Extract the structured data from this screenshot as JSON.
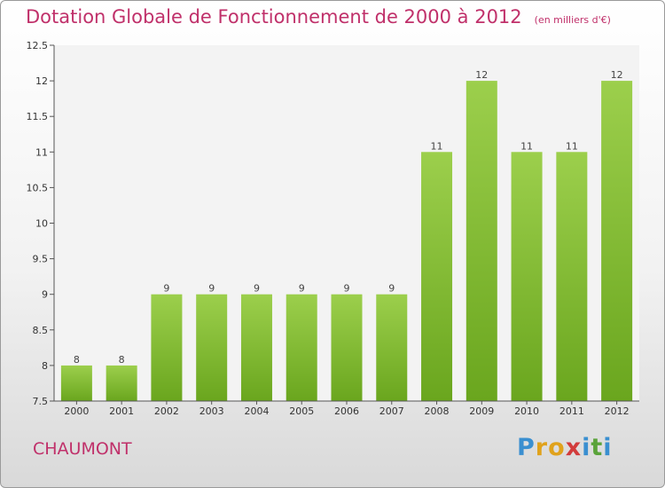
{
  "chart_data": {
    "type": "bar",
    "title": "Dotation Globale de Fonctionnement de 2000 à 2012",
    "subtitle": "(en milliers d'€)",
    "categories": [
      "2000",
      "2001",
      "2002",
      "2003",
      "2004",
      "2005",
      "2006",
      "2007",
      "2008",
      "2009",
      "2010",
      "2011",
      "2012"
    ],
    "values": [
      8,
      8,
      9,
      9,
      9,
      9,
      9,
      9,
      11,
      12,
      11,
      11,
      12
    ],
    "value_labels": [
      "8",
      "8",
      "9",
      "9",
      "9",
      "9",
      "9",
      "9",
      "11",
      "12",
      "11",
      "11",
      "12"
    ],
    "y_ticks": [
      "7.5",
      "8",
      "8.5",
      "9",
      "9.5",
      "10",
      "10.5",
      "11",
      "11.5",
      "12",
      "12.5"
    ],
    "ylim": [
      7.5,
      12.5
    ],
    "xlabel": "",
    "ylabel": "",
    "grid": false,
    "bar_color_top": "#9ccf4c",
    "bar_color_bottom": "#6aa61e"
  },
  "footer": {
    "commune": "CHAUMONT",
    "brand_letters": [
      "P",
      "r",
      "o",
      "x",
      "i",
      "t",
      "i"
    ],
    "brand_colors": [
      "#3a8fd0",
      "#e0a21c",
      "#e0a21c",
      "#d23c3c",
      "#3a8fd0",
      "#5aa33a",
      "#3a8fd0"
    ]
  }
}
